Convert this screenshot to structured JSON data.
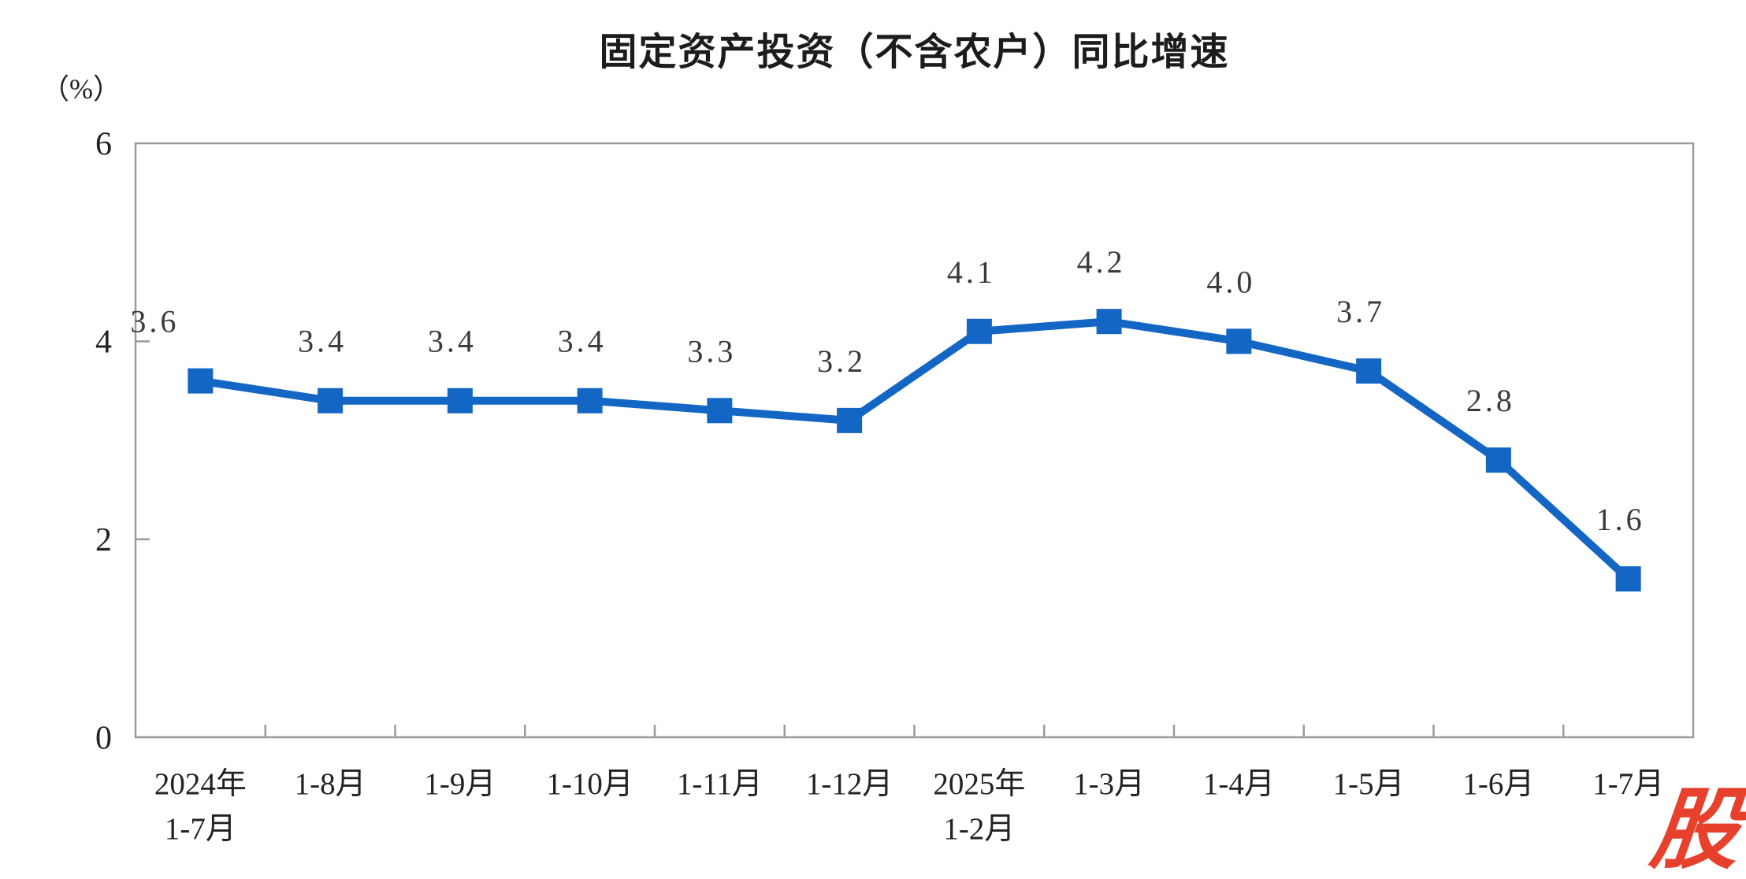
{
  "title": "固定资产投资（不含农户）同比增速",
  "y_unit_label": "（%）",
  "watermark": {
    "text": "股"
  },
  "colors": {
    "line": "#1366C4",
    "marker": "#1366C4",
    "data_label": "#3a3a3a",
    "axis": "#9b9b9b",
    "tick_label": "#222222",
    "title": "#1c1c1c",
    "watermark": "#E7412D"
  },
  "chart_data": {
    "type": "line",
    "title": "固定资产投资（不含农户）同比增速",
    "ylabel": "（%）",
    "categories": [
      "2024年\n1-7月",
      "1-8月",
      "1-9月",
      "1-10月",
      "1-11月",
      "1-12月",
      "2025年\n1-2月",
      "1-3月",
      "1-4月",
      "1-5月",
      "1-6月",
      "1-7月"
    ],
    "values": [
      3.6,
      3.4,
      3.4,
      3.4,
      3.3,
      3.2,
      4.1,
      4.2,
      4.0,
      3.7,
      2.8,
      1.6
    ],
    "value_labels": [
      "3.6",
      "3.4",
      "3.4",
      "3.4",
      "3.3",
      "3.2",
      "4.1",
      "4.2",
      "4.0",
      "3.7",
      "2.8",
      "1.6"
    ],
    "ylim": [
      0,
      6
    ],
    "yticks": [
      0,
      2,
      4,
      6
    ],
    "grid": "off",
    "legend": "none",
    "marker": "square"
  }
}
